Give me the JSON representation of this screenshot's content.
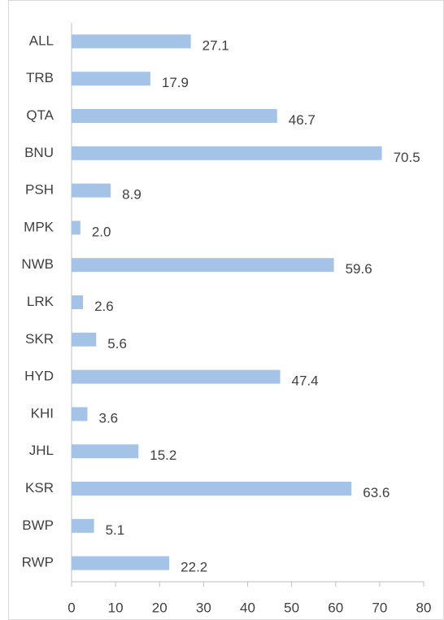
{
  "chart_data": {
    "type": "bar",
    "orientation": "horizontal",
    "categories": [
      "ALL",
      "TRB",
      "QTA",
      "BNU",
      "PSH",
      "MPK",
      "NWB",
      "LRK",
      "SKR",
      "HYD",
      "KHI",
      "JHL",
      "KSR",
      "BWP",
      "RWP"
    ],
    "values": [
      27.1,
      17.9,
      46.7,
      70.5,
      8.9,
      2.0,
      59.6,
      2.6,
      5.6,
      47.4,
      3.6,
      15.2,
      63.6,
      5.1,
      22.2
    ],
    "value_labels": [
      "27.1",
      "17.9",
      "46.7",
      "70.5",
      "8.9",
      "2.0",
      "59.6",
      "2.6",
      "5.6",
      "47.4",
      "3.6",
      "15.2",
      "63.6",
      "5.1",
      "22.2"
    ],
    "color": "#a5c3e6",
    "xlim": [
      0,
      80
    ],
    "xticks": [
      0,
      10,
      20,
      30,
      40,
      50,
      60,
      70,
      80
    ],
    "grid": false
  }
}
